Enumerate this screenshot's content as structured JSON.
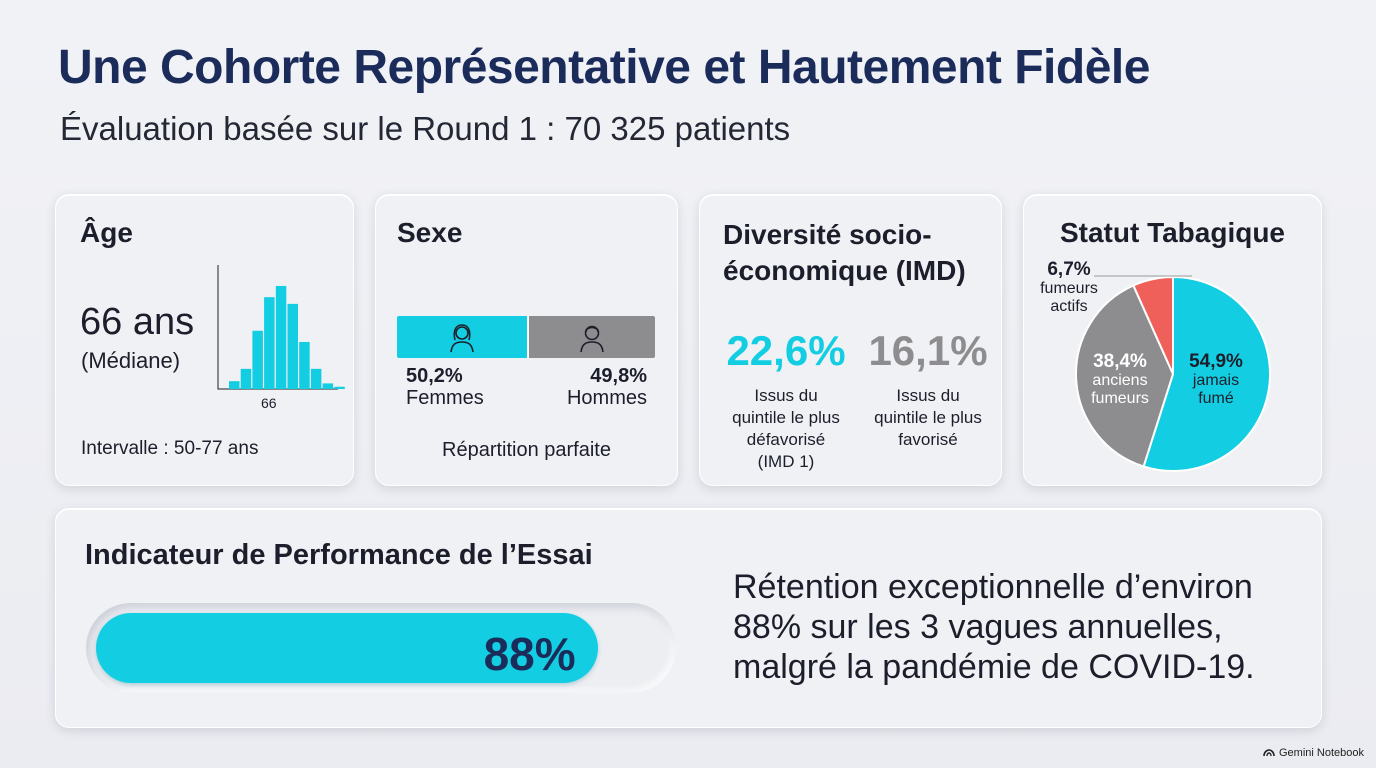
{
  "header": {
    "title": "Une Cohorte Représentative et Hautement Fidèle",
    "subtitle": "Évaluation basée sur le Round 1 : 70 325 patients"
  },
  "age_card": {
    "title": "Âge",
    "value": "66 ans",
    "note": "(Médiane)",
    "range": "Intervalle : 50-77 ans"
  },
  "sex_card": {
    "title": "Sexe",
    "female_pct": "50,2%",
    "female_label": "Femmes",
    "male_pct": "49,8%",
    "male_label": "Hommes",
    "footer": "Répartition parfaite",
    "female_icon": "woman-icon",
    "male_icon": "man-icon"
  },
  "imd_card": {
    "title_line1": "Diversité socio-",
    "title_line2": "économique (IMD)",
    "left_value": "22,6%",
    "left_desc": [
      "Issus du",
      "quintile le plus",
      "défavorisé",
      "(IMD 1)"
    ],
    "right_value": "16,1%",
    "right_desc": [
      "Issus du",
      "quintile le plus",
      "favorisé"
    ]
  },
  "smoke_card": {
    "title": "Statut Tabagique",
    "slices": [
      {
        "pct": "54,9%",
        "label_lines": [
          "jamais",
          "fumé"
        ]
      },
      {
        "pct": "38,4%",
        "label_lines": [
          "anciens",
          "fumeurs"
        ]
      },
      {
        "pct": "6,7%",
        "label_lines": [
          "fumeurs",
          "actifs"
        ]
      }
    ]
  },
  "perf_card": {
    "title": "Indicateur de Performance de l’Essai",
    "value": "88%",
    "text": "Rétention exceptionnelle d’environ 88% sur les 3 vagues annuelles, malgré la pandémie de COVID-19."
  },
  "colors": {
    "accent": "#13cee3",
    "grey": "#8d8d8f",
    "red": "#f0605a",
    "navy": "#1b2c5b"
  },
  "brand": "Gemini Notebook",
  "chart_data": [
    {
      "type": "bar",
      "title": "Âge",
      "x_ticks": [
        "66"
      ],
      "values": [
        0.07,
        0.18,
        0.52,
        0.82,
        0.92,
        0.76,
        0.42,
        0.18,
        0.05,
        0.02
      ],
      "ylim": [
        0,
        1
      ]
    },
    {
      "type": "bar",
      "title": "Sexe",
      "categories": [
        "Femmes",
        "Hommes"
      ],
      "values": [
        50.2,
        49.8
      ]
    },
    {
      "type": "bar",
      "title": "Diversité socio-économique (IMD)",
      "categories": [
        "IMD 1",
        "IMD 5"
      ],
      "values": [
        22.6,
        16.1
      ]
    },
    {
      "type": "pie",
      "title": "Statut Tabagique",
      "categories": [
        "jamais fumé",
        "anciens fumeurs",
        "fumeurs actifs"
      ],
      "values": [
        54.9,
        38.4,
        6.7
      ],
      "colors": [
        "#13cee3",
        "#8d8d8f",
        "#f0605a"
      ]
    },
    {
      "type": "bar",
      "title": "Indicateur de Performance de l’Essai",
      "values": [
        88
      ],
      "ylim": [
        0,
        100
      ]
    }
  ]
}
